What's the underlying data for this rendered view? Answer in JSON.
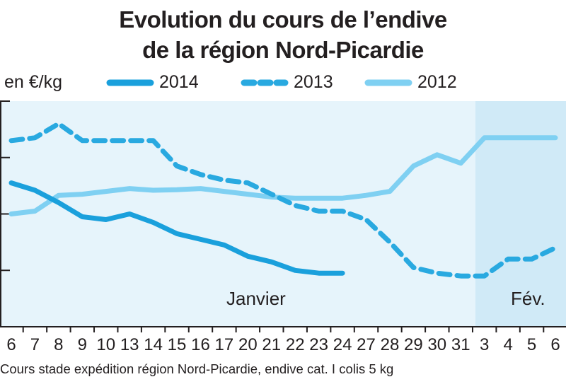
{
  "title_line1": "Evolution du cours de l’endive",
  "title_line2": "de la région Nord-Picardie",
  "unit_label": "en €/kg",
  "source_note": "Cours stade expédition région Nord-Picardie, endive cat. I colis 5 kg",
  "colors": {
    "s2014": "#1aa0dc",
    "s2013": "#29a9e0",
    "s2012": "#7fd0f2",
    "plot_bg": "#e6f4fb",
    "feb_bg": "#d0eaf7"
  },
  "chart_data": {
    "type": "line",
    "title": "Evolution du cours de l’endive de la région Nord-Picardie",
    "ylabel": "en €/kg",
    "xlabel": "",
    "x": [
      "6",
      "7",
      "8",
      "9",
      "10",
      "13",
      "14",
      "15",
      "16",
      "17",
      "20",
      "21",
      "22",
      "23",
      "24",
      "27",
      "28",
      "29",
      "30",
      "31",
      "3",
      "4",
      "5",
      "6"
    ],
    "month_labels": [
      "Janvier",
      "Fév."
    ],
    "ylim": [
      0,
      4
    ],
    "y_ticks_count": 4,
    "grid": false,
    "legend_position": "top",
    "series": [
      {
        "name": "2014",
        "style": "solid",
        "values": [
          2.55,
          2.42,
          2.2,
          1.95,
          1.9,
          2.0,
          1.85,
          1.65,
          1.55,
          1.45,
          1.25,
          1.15,
          1.0,
          0.95,
          0.95,
          null,
          null,
          null,
          null,
          null,
          null,
          null,
          null,
          null
        ]
      },
      {
        "name": "2013",
        "style": "dashed",
        "values": [
          3.3,
          3.35,
          3.6,
          3.3,
          3.3,
          3.3,
          3.3,
          2.85,
          2.7,
          2.6,
          2.55,
          2.35,
          2.15,
          2.05,
          2.05,
          1.9,
          1.5,
          1.05,
          0.95,
          0.9,
          0.9,
          1.2,
          1.2,
          1.4
        ]
      },
      {
        "name": "2012",
        "style": "solid",
        "values": [
          2.0,
          2.05,
          2.33,
          2.35,
          2.4,
          2.45,
          2.42,
          2.43,
          2.45,
          2.4,
          2.35,
          2.3,
          2.28,
          2.28,
          2.28,
          2.33,
          2.4,
          2.85,
          3.05,
          2.9,
          3.35,
          3.35,
          3.35,
          3.35
        ]
      }
    ]
  }
}
